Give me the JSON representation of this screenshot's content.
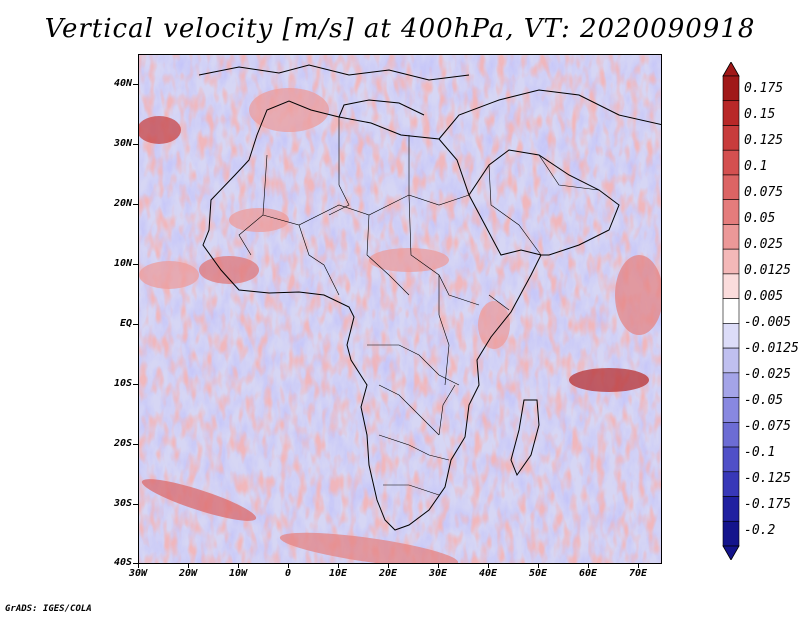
{
  "title": "Vertical velocity [m/s] at 400hPa, VT: 2020090918",
  "footer": "GrADS: IGES/COLA",
  "map": {
    "region": "Africa",
    "lat_labels": [
      "40N",
      "30N",
      "20N",
      "10N",
      "EQ",
      "10S",
      "20S",
      "30S",
      "40S"
    ],
    "lon_labels": [
      "30W",
      "20W",
      "10W",
      "0",
      "10E",
      "20E",
      "30E",
      "40E",
      "50E",
      "60E",
      "70E"
    ],
    "lat_range": [
      -40,
      45
    ],
    "lon_range": [
      -30,
      75
    ]
  },
  "colorbar": {
    "labels": [
      "0.175",
      "0.15",
      "0.125",
      "0.1",
      "0.075",
      "0.05",
      "0.025",
      "0.0125",
      "0.005",
      "-0.005",
      "-0.0125",
      "-0.025",
      "-0.05",
      "-0.075",
      "-0.1",
      "-0.125",
      "-0.175",
      "-0.2"
    ],
    "colors": [
      "#a01818",
      "#b82828",
      "#c83c3c",
      "#d45050",
      "#dc6464",
      "#e47c7c",
      "#ec9898",
      "#f4b8b8",
      "#fbdcdc",
      "#ffffff",
      "#dcdcf8",
      "#c0c0f0",
      "#a4a4e8",
      "#8888e0",
      "#6c6cd4",
      "#5050c8",
      "#3838b8",
      "#2020a0",
      "#14148c"
    ]
  }
}
